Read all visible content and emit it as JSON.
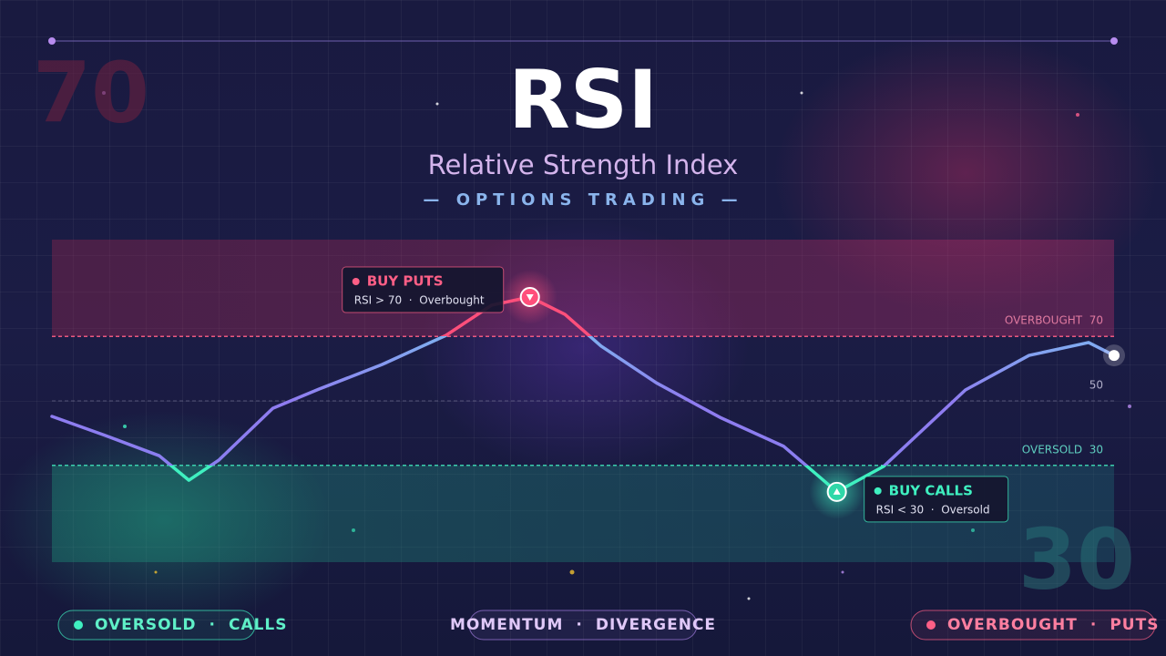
{
  "header": {
    "title": "RSI",
    "subtitle": "Relative Strength Index",
    "tagline": "— OPTIONS TRADING —"
  },
  "watermarks": [
    "70",
    "30"
  ],
  "chart_data": {
    "type": "line",
    "x": [
      0,
      5,
      10.1,
      12.9,
      15.7,
      20.8,
      25.1,
      31.1,
      37.1,
      41.4,
      45,
      48.3,
      51.7,
      56.9,
      62.9,
      68.9,
      73.9,
      78.3,
      86,
      92,
      97.6,
      100
    ],
    "values": [
      45.2,
      39.3,
      33,
      25.4,
      31.6,
      47.7,
      53.6,
      61.3,
      70.3,
      79.7,
      82.2,
      76.8,
      67,
      55.6,
      44.9,
      35.9,
      21.8,
      29.7,
      53.4,
      64.1,
      68.1,
      64.1
    ],
    "xlim": [
      0,
      100
    ],
    "ylim": [
      0,
      100
    ],
    "yticks": [
      {
        "value": 70,
        "label": "OVERBOUGHT  70"
      },
      50,
      {
        "value": 30,
        "label": "OVERSOLD  30"
      }
    ],
    "annotations": [
      {
        "title": "BUY PUTS",
        "text": "RSI > 70  ·  Overbought"
      },
      {
        "title": "BUY CALLS",
        "text": "RSI < 30  ·  Oversold"
      }
    ]
  },
  "footer": [
    [
      "OVERSOLD",
      "CALLS"
    ],
    [
      "MOMENTUM",
      "DIVERGENCE"
    ],
    [
      "OVERBOUGHT",
      "PUTS"
    ]
  ]
}
